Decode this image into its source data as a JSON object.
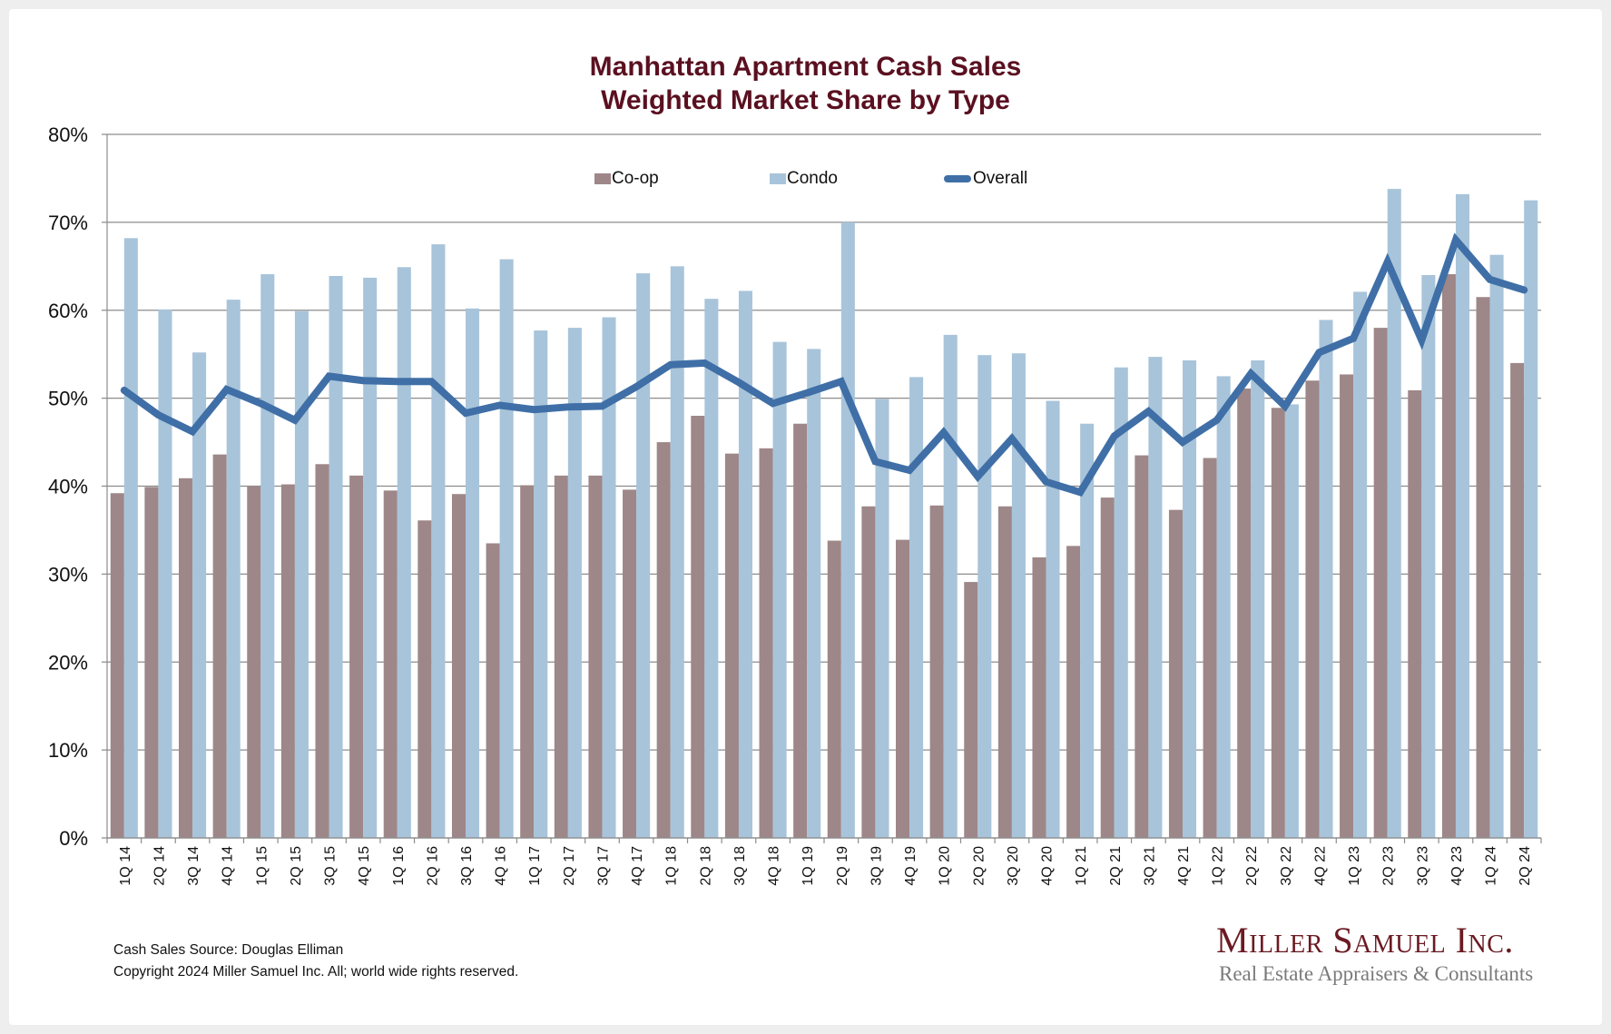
{
  "chart_data": {
    "type": "bar",
    "title": "Manhattan Apartment Cash Sales",
    "subtitle": "Weighted Market Share by Type",
    "xlabel": "",
    "ylabel": "",
    "ylim": [
      0,
      80
    ],
    "y_ticks": [
      0,
      10,
      20,
      30,
      40,
      50,
      60,
      70,
      80
    ],
    "y_tick_labels": [
      "0%",
      "10%",
      "20%",
      "30%",
      "40%",
      "50%",
      "60%",
      "70%",
      "80%"
    ],
    "grid": true,
    "legend_position": "top-center",
    "categories": [
      "1Q 14",
      "2Q 14",
      "3Q 14",
      "4Q 14",
      "1Q 15",
      "2Q 15",
      "3Q 15",
      "4Q 15",
      "1Q 16",
      "2Q 16",
      "3Q 16",
      "4Q 16",
      "1Q 17",
      "2Q 17",
      "3Q 17",
      "4Q 17",
      "1Q 18",
      "2Q 18",
      "3Q 18",
      "4Q 18",
      "1Q 19",
      "2Q 19",
      "3Q 19",
      "4Q 19",
      "1Q 20",
      "2Q 20",
      "3Q 20",
      "4Q 20",
      "1Q 21",
      "2Q 21",
      "3Q 21",
      "4Q 21",
      "1Q 22",
      "2Q 22",
      "3Q 22",
      "4Q 22",
      "1Q 23",
      "2Q 23",
      "3Q 23",
      "4Q 23",
      "1Q 24",
      "2Q 24"
    ],
    "series": [
      {
        "name": "Co-op",
        "kind": "bar",
        "color": "#9e8788",
        "values": [
          39.2,
          39.9,
          40.9,
          43.6,
          40.0,
          40.2,
          42.5,
          41.2,
          39.5,
          36.1,
          39.1,
          33.5,
          40.1,
          41.2,
          41.2,
          39.6,
          45.0,
          48.0,
          43.7,
          44.3,
          47.1,
          33.8,
          37.7,
          33.9,
          37.8,
          29.1,
          37.7,
          31.9,
          33.2,
          38.7,
          43.5,
          37.3,
          43.2,
          51.1,
          48.9,
          52.0,
          52.7,
          58.0,
          50.9,
          64.1,
          61.5,
          54.0
        ]
      },
      {
        "name": "Condo",
        "kind": "bar",
        "color": "#a8c4da",
        "values": [
          68.2,
          60.1,
          55.2,
          61.2,
          64.1,
          59.9,
          63.9,
          63.7,
          64.9,
          67.5,
          60.2,
          65.8,
          57.7,
          58.0,
          59.2,
          64.2,
          65.0,
          61.3,
          62.2,
          56.4,
          55.6,
          70.0,
          49.9,
          52.4,
          57.2,
          54.9,
          55.1,
          49.7,
          47.1,
          53.5,
          54.7,
          54.3,
          52.5,
          54.3,
          49.3,
          58.9,
          62.1,
          73.8,
          64.0,
          73.2,
          66.3,
          72.5
        ]
      },
      {
        "name": "Overall",
        "kind": "line",
        "color": "#3f6fa6",
        "values": [
          50.9,
          48.1,
          46.2,
          51.0,
          49.4,
          47.5,
          52.5,
          52.0,
          51.9,
          51.9,
          48.3,
          49.2,
          48.7,
          49.0,
          49.1,
          51.3,
          53.8,
          54.0,
          51.8,
          49.4,
          50.6,
          51.9,
          42.8,
          41.8,
          46.1,
          41.1,
          45.4,
          40.5,
          39.3,
          45.7,
          48.5,
          45.0,
          47.5,
          52.8,
          49.1,
          55.2,
          56.8,
          65.5,
          56.6,
          68.0,
          63.5,
          62.3
        ]
      }
    ]
  },
  "footer": {
    "source": "Cash Sales Source: Douglas Elliman",
    "copyright": "Copyright 2024 Miller Samuel Inc.  All; world wide rights reserved."
  },
  "logo": {
    "name": "Miller Samuel Inc.",
    "tagline": "Real Estate Appraisers & Consultants"
  },
  "colors": {
    "title": "#5a1020",
    "grid": "#8c8c8c",
    "logo": "#6b1a22"
  }
}
